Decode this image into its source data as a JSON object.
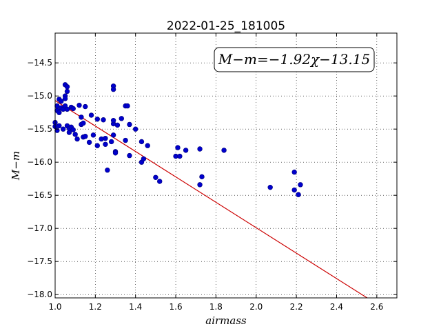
{
  "chart_data": {
    "type": "scatter",
    "title": "2022-01-25_181005",
    "xlabel": "airmass",
    "ylabel": "M−m",
    "annotation": "M−m=−1.92χ−13.15",
    "xlim": [
      1.0,
      2.7
    ],
    "ylim": [
      -18.05,
      -14.05
    ],
    "xticks": [
      1.0,
      1.2,
      1.4,
      1.6,
      1.8,
      2.0,
      2.2,
      2.4,
      2.6
    ],
    "xtick_labels": [
      "1.0",
      "1.2",
      "1.4",
      "1.6",
      "1.8",
      "2.0",
      "2.2",
      "2.4",
      "2.6"
    ],
    "yticks": [
      -14.5,
      -15.0,
      -15.5,
      -16.0,
      -16.5,
      -17.0,
      -17.5,
      -18.0
    ],
    "ytick_labels": [
      "−14.5",
      "−15.0",
      "−15.5",
      "−16.0",
      "−16.5",
      "−17.0",
      "−17.5",
      "−18.0"
    ],
    "grid": true,
    "fit": {
      "slope": -1.92,
      "intercept": -13.15,
      "color": "#cc0000"
    },
    "point_color": "#0000cc",
    "points": [
      [
        1.0,
        -15.4
      ],
      [
        1.0,
        -15.46
      ],
      [
        1.01,
        -15.15
      ],
      [
        1.01,
        -15.22
      ],
      [
        1.01,
        -15.52
      ],
      [
        1.02,
        -15.05
      ],
      [
        1.02,
        -15.25
      ],
      [
        1.02,
        -15.45
      ],
      [
        1.03,
        -15.08
      ],
      [
        1.03,
        -15.18
      ],
      [
        1.04,
        -15.2
      ],
      [
        1.04,
        -15.5
      ],
      [
        1.05,
        -15.0
      ],
      [
        1.05,
        -15.04
      ],
      [
        1.05,
        -15.15
      ],
      [
        1.05,
        -14.83
      ],
      [
        1.06,
        -14.86
      ],
      [
        1.06,
        -14.93
      ],
      [
        1.06,
        -15.2
      ],
      [
        1.06,
        -15.45
      ],
      [
        1.07,
        -15.55
      ],
      [
        1.07,
        -15.49
      ],
      [
        1.08,
        -15.17
      ],
      [
        1.08,
        -15.47
      ],
      [
        1.09,
        -15.19
      ],
      [
        1.09,
        -15.51
      ],
      [
        1.1,
        -15.58
      ],
      [
        1.11,
        -15.65
      ],
      [
        1.12,
        -15.14
      ],
      [
        1.13,
        -15.32
      ],
      [
        1.13,
        -15.43
      ],
      [
        1.14,
        -15.41
      ],
      [
        1.14,
        -15.62
      ],
      [
        1.15,
        -15.16
      ],
      [
        1.15,
        -15.61
      ],
      [
        1.17,
        -15.7
      ],
      [
        1.18,
        -15.29
      ],
      [
        1.19,
        -15.59
      ],
      [
        1.21,
        -15.35
      ],
      [
        1.21,
        -15.75
      ],
      [
        1.23,
        -15.65
      ],
      [
        1.24,
        -15.36
      ],
      [
        1.25,
        -15.64
      ],
      [
        1.25,
        -15.73
      ],
      [
        1.26,
        -16.12
      ],
      [
        1.28,
        -15.69
      ],
      [
        1.29,
        -15.42
      ],
      [
        1.29,
        -15.37
      ],
      [
        1.29,
        -15.59
      ],
      [
        1.29,
        -14.85
      ],
      [
        1.29,
        -14.9
      ],
      [
        1.3,
        -15.84
      ],
      [
        1.3,
        -15.86
      ],
      [
        1.31,
        -15.44
      ],
      [
        1.33,
        -15.34
      ],
      [
        1.35,
        -15.15
      ],
      [
        1.35,
        -15.67
      ],
      [
        1.36,
        -15.15
      ],
      [
        1.37,
        -15.43
      ],
      [
        1.37,
        -15.9
      ],
      [
        1.4,
        -15.5
      ],
      [
        1.43,
        -16.0
      ],
      [
        1.43,
        -15.69
      ],
      [
        1.44,
        -15.95
      ],
      [
        1.46,
        -15.75
      ],
      [
        1.5,
        -16.23
      ],
      [
        1.52,
        -16.29
      ],
      [
        1.6,
        -15.91
      ],
      [
        1.61,
        -15.78
      ],
      [
        1.62,
        -15.91
      ],
      [
        1.65,
        -15.82
      ],
      [
        1.72,
        -15.8
      ],
      [
        1.72,
        -16.34
      ],
      [
        1.73,
        -16.22
      ],
      [
        1.84,
        -15.82
      ],
      [
        2.07,
        -16.38
      ],
      [
        2.19,
        -16.15
      ],
      [
        2.19,
        -16.42
      ],
      [
        2.21,
        -16.49
      ],
      [
        2.22,
        -16.34
      ]
    ]
  }
}
